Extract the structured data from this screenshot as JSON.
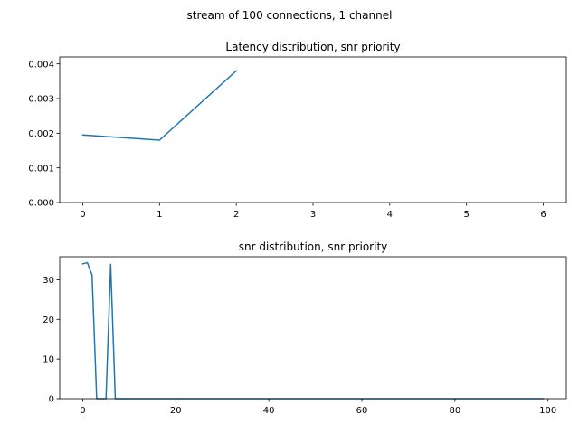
{
  "figure": {
    "suptitle": "stream of 100 connections, 1 channel"
  },
  "colors": {
    "series": "#1f77b4",
    "axes": "#000000",
    "background": "#ffffff"
  },
  "chart_data": [
    {
      "type": "line",
      "title": "Latency distribution, snr priority",
      "xlabel": "",
      "ylabel": "",
      "xlim": [
        -0.3,
        6.3
      ],
      "ylim": [
        0,
        0.0042
      ],
      "xticks": [
        0,
        1,
        2,
        3,
        4,
        5,
        6
      ],
      "xtick_labels": [
        "0",
        "1",
        "2",
        "3",
        "4",
        "5",
        "6"
      ],
      "yticks": [
        0,
        0.001,
        0.002,
        0.003,
        0.004
      ],
      "ytick_labels": [
        "0.000",
        "0.001",
        "0.002",
        "0.003",
        "0.004"
      ],
      "grid": false,
      "series": [
        {
          "x": [
            0,
            1,
            2
          ],
          "values": [
            0.00195,
            0.0018,
            0.0038
          ]
        }
      ]
    },
    {
      "type": "line",
      "title": "snr distribution, snr priority",
      "xlabel": "",
      "ylabel": "",
      "xlim": [
        -4.95,
        103.95
      ],
      "ylim": [
        0,
        35.8
      ],
      "xticks": [
        0,
        20,
        40,
        60,
        80,
        100
      ],
      "xtick_labels": [
        "0",
        "20",
        "40",
        "60",
        "80",
        "100"
      ],
      "yticks": [
        0,
        10,
        20,
        30
      ],
      "ytick_labels": [
        "0",
        "10",
        "20",
        "30"
      ],
      "grid": false,
      "series": [
        {
          "x": [
            0,
            1,
            2,
            3,
            4,
            5,
            6,
            7,
            99
          ],
          "values": [
            34.0,
            34.3,
            31.2,
            0,
            0,
            0,
            33.9,
            0,
            0
          ]
        }
      ]
    }
  ]
}
